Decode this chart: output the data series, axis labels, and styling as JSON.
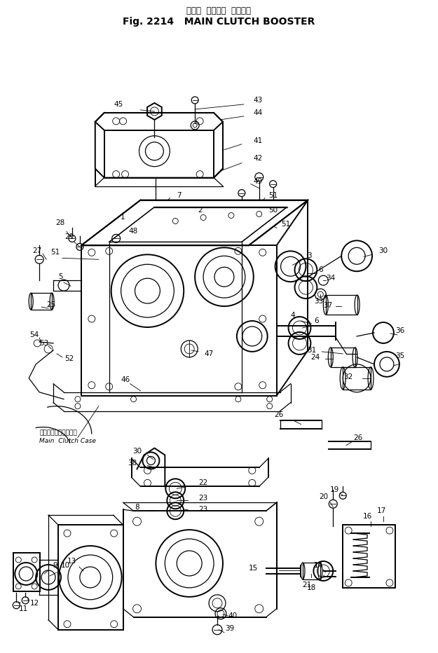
{
  "title_line1": "メイン  クラッチ  ブースタ",
  "title_line2": "Fig. 2214   MAIN CLUTCH BOOSTER",
  "bg_color": "#ffffff",
  "line_color": "#000000",
  "fig_width": 6.25,
  "fig_height": 9.32,
  "dpi": 100
}
